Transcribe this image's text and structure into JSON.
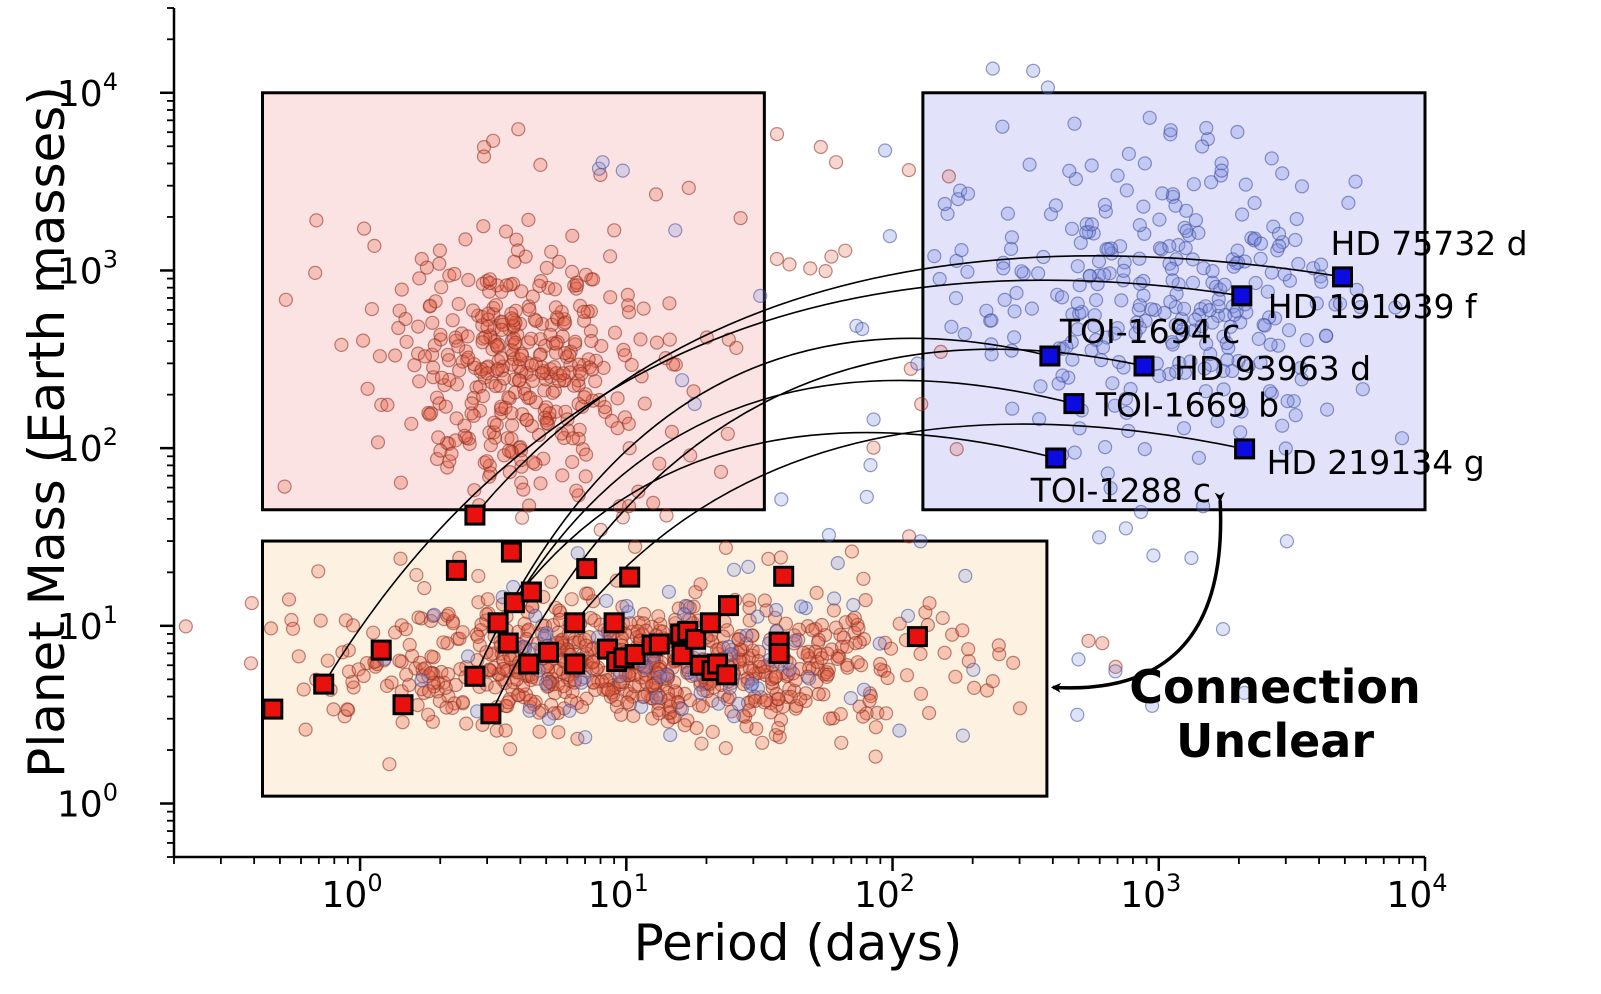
{
  "chart_data": {
    "type": "scatter",
    "xscale": "log",
    "yscale": "log",
    "xlim": [
      0.2,
      10000
    ],
    "ylim": [
      0.5,
      30000
    ],
    "xlabel": "Period (days)",
    "ylabel": "Planet Mass (Earth masses)",
    "xticks": [
      {
        "value": 1,
        "base": "10",
        "exp": "0"
      },
      {
        "value": 10,
        "base": "10",
        "exp": "1"
      },
      {
        "value": 100,
        "base": "10",
        "exp": "2"
      },
      {
        "value": 1000,
        "base": "10",
        "exp": "3"
      },
      {
        "value": 10000,
        "base": "10",
        "exp": "4"
      }
    ],
    "yticks": [
      {
        "value": 1,
        "base": "10",
        "exp": "0"
      },
      {
        "value": 10,
        "base": "10",
        "exp": "1"
      },
      {
        "value": 100,
        "base": "10",
        "exp": "2"
      },
      {
        "value": 1000,
        "base": "10",
        "exp": "3"
      },
      {
        "value": 10000,
        "base": "10",
        "exp": "4"
      }
    ],
    "regions": [
      {
        "x": [
          0.43,
          33
        ],
        "y": [
          45,
          10000
        ],
        "color": "#fbe3e3"
      },
      {
        "x": [
          130,
          10000
        ],
        "y": [
          45,
          10000
        ],
        "color": "#e2e2fb"
      },
      {
        "x": [
          0.43,
          380
        ],
        "y": [
          1.1,
          30
        ],
        "color": "#fdf2e2"
      }
    ],
    "colors": {
      "hot_dots": "#e35c43",
      "cold_dots": "#7d8fe0",
      "inner_marker": "#e8110e",
      "outer_marker": "#0c0ce0"
    },
    "labeled_planets": [
      {
        "name": "HD 75732 d",
        "period": 4900,
        "mass": 920
      },
      {
        "name": "HD 191939 f",
        "period": 2050,
        "mass": 720
      },
      {
        "name": "TOI-1694 c",
        "period": 390,
        "mass": 330
      },
      {
        "name": "HD 93963 d",
        "period": 880,
        "mass": 290
      },
      {
        "name": "TOI-1669 b",
        "period": 480,
        "mass": 178
      },
      {
        "name": "HD 219134 g",
        "period": 2100,
        "mass": 99
      },
      {
        "name": "TOI-1288 c",
        "period": 410,
        "mass": 88
      }
    ],
    "inner_planets": [
      [
        0.47,
        3.4
      ],
      [
        0.73,
        4.7
      ],
      [
        1.2,
        7.3
      ],
      [
        1.45,
        3.6
      ],
      [
        2.3,
        20.5
      ],
      [
        2.7,
        42
      ],
      [
        2.7,
        5.2
      ],
      [
        3.1,
        3.2
      ],
      [
        3.3,
        10.4
      ],
      [
        3.6,
        8.0
      ],
      [
        3.7,
        26
      ],
      [
        3.8,
        13.5
      ],
      [
        4.3,
        6.1
      ],
      [
        4.4,
        15.5
      ],
      [
        5.1,
        7.1
      ],
      [
        6.4,
        10.4
      ],
      [
        6.4,
        6.1
      ],
      [
        7.1,
        21
      ],
      [
        8.5,
        7.4
      ],
      [
        9.0,
        10.4
      ],
      [
        9.2,
        6.3
      ],
      [
        9.8,
        6.6
      ],
      [
        10.3,
        18.8
      ],
      [
        10.8,
        6.9
      ],
      [
        12.5,
        7.8
      ],
      [
        13.3,
        7.9
      ],
      [
        16,
        9.0
      ],
      [
        16.2,
        6.9
      ],
      [
        17,
        9.3
      ],
      [
        18.2,
        8.4
      ],
      [
        19,
        6.0
      ],
      [
        20.7,
        10.4
      ],
      [
        21,
        5.6
      ],
      [
        22,
        6.1
      ],
      [
        23.8,
        5.3
      ],
      [
        24.2,
        13
      ],
      [
        37.5,
        8.1
      ],
      [
        37.5,
        7.0
      ],
      [
        39,
        19
      ],
      [
        124,
        8.7
      ]
    ],
    "connections": [
      {
        "from": [
          0.73,
          4.7
        ],
        "to": "HD 191939 f"
      },
      {
        "from": [
          2.7,
          42
        ],
        "to": "HD 75732 d"
      },
      {
        "from": [
          2.7,
          5.2
        ],
        "to": "TOI-1694 c"
      },
      {
        "from": [
          3.1,
          3.2
        ],
        "to": "HD 93963 d"
      },
      {
        "from": [
          3.8,
          13.5
        ],
        "to": "TOI-1669 b"
      },
      {
        "from": [
          3.3,
          10.4
        ],
        "to": "TOI-1288 c"
      },
      {
        "from": [
          6.4,
          10.4
        ],
        "to": "HD 219134 g"
      }
    ],
    "annotation": {
      "text_lines": [
        "Connection",
        "Unclear"
      ],
      "arrow_from": [
        1700,
        55
      ],
      "arrow_to": [
        380,
        4.5
      ]
    },
    "background_dots_hot": 1200,
    "background_dots_cold": 420
  }
}
